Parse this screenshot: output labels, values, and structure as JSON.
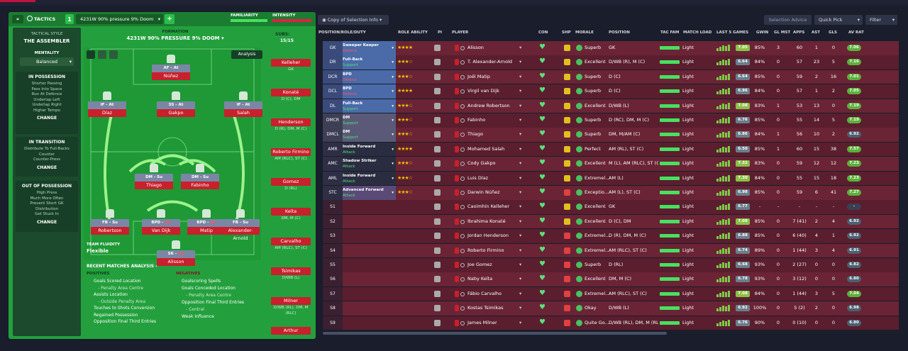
{
  "header": {
    "tactics_label": "TACTICS",
    "slot": "1",
    "tactic_name": "4231W 90% pressure 9% Doom",
    "familiarity": "FAMILIARITY",
    "intensity": "INTENSITY"
  },
  "sidebar": {
    "style_label": "TACTICAL STYLE",
    "style_value": "THE ASSEMBLER",
    "mentality_label": "MENTALITY",
    "mentality_value": "Balanced",
    "in_possession": {
      "title": "IN POSSESSION",
      "lines": [
        "Shorter Passing",
        "Pass Into Space",
        "Run At Defence",
        "Underlap Left",
        "Underlap Right",
        "Higher Tempo"
      ],
      "change": "CHANGE"
    },
    "in_transition": {
      "title": "IN TRANSITION",
      "lines": [
        "Distribute To Full-Backs",
        "Counter",
        "Counter-Press"
      ],
      "change": "CHANGE"
    },
    "out_of_possession": {
      "title": "OUT OF POSSESSION",
      "lines": [
        "High Press",
        "Much More Often",
        "Prevent Short GK",
        "Distribution",
        "Get Stuck In"
      ],
      "change": "CHANGE"
    }
  },
  "formation": {
    "label": "FORMATION",
    "value": "4231W 90% PRESSURE 9% DOOM",
    "subs_label": "SUBS:",
    "subs_value": "15/15",
    "analysis": "Analysis",
    "fluidity_label": "TEAM FLUIDITY",
    "fluidity_value": "Flexible"
  },
  "pitch_players": [
    {
      "role": "AF",
      "duty": "At",
      "name": "Núñez"
    },
    {
      "role": "IF",
      "duty": "At",
      "name": "Díaz"
    },
    {
      "role": "SS",
      "duty": "At",
      "name": "Gakpo"
    },
    {
      "role": "IF",
      "duty": "At",
      "name": "Salah"
    },
    {
      "role": "DM",
      "duty": "Su",
      "name": "Thiago"
    },
    {
      "role": "DM",
      "duty": "Su",
      "name": "Fabinho"
    },
    {
      "role": "FB",
      "duty": "Su",
      "name": "Robertson"
    },
    {
      "role": "BPD",
      "duty": "De",
      "name": "Van Dijk"
    },
    {
      "role": "BPD",
      "duty": "De",
      "name": "Matip"
    },
    {
      "role": "FB",
      "duty": "Su",
      "name": "Alexander-Arnold"
    },
    {
      "role": "SK",
      "duty": "De",
      "name": "Alisson"
    }
  ],
  "subs": [
    {
      "name": "Kelleher",
      "pos": "GK"
    },
    {
      "name": "Konaté",
      "pos": "D (C), DM"
    },
    {
      "name": "Henderson",
      "pos": "D (R), DM, M (C)"
    },
    {
      "name": "Roberto Firmino",
      "pos": "AM (RLC), ST (C)"
    },
    {
      "name": "Gomez",
      "pos": "D (RL)"
    },
    {
      "name": "Keïta",
      "pos": "DM, M (C)"
    },
    {
      "name": "Carvalho",
      "pos": "AM (RLC), ST (C)"
    },
    {
      "name": "Tsimikas",
      "pos": "D/WB (L)"
    },
    {
      "name": "Milner",
      "pos": "D/WB (RL), DM, M (RLC)"
    },
    {
      "name": "Arthur",
      "pos": ""
    }
  ],
  "analysis": {
    "title": "RECENT MATCHES ANALYSIS",
    "positives_label": "POSITIVES",
    "positives": [
      "Goals Scored Location",
      "- Penalty Area Centre",
      "Assists Location",
      "- Outside Penalty Area",
      "Touches to Shots Conversion",
      "Regained Possession",
      "Opposition Final Third Entries"
    ],
    "negatives_label": "NEGATIVES",
    "negatives": [
      "Goalscoring Spells",
      "Goals Conceded Location",
      "- Penalty Area Centre",
      "Opposition Final Third Entries",
      "- Central",
      "Weak Influence"
    ]
  },
  "toolbar": {
    "view": "Copy of Selection Info",
    "advice": "Selection Advice",
    "quick_pick": "Quick Pick",
    "filter": "Filter"
  },
  "columns": [
    "POSITION/ROLE/DUTY",
    "ROLE ABILITY",
    "PI",
    "PLAYER",
    "CON",
    "SHP",
    "MORALE",
    "POSITION",
    "TAC FAM",
    "MATCH LOAD",
    "LAST 5 GAMES",
    "GWIN",
    "GL MST",
    "APPS",
    "AST",
    "GLS",
    "AV RAT"
  ],
  "rows": [
    {
      "pos": "GK",
      "role": "Sweeper Keeper",
      "duty": "Defend",
      "stars": "★★★★",
      "name": "Alisson",
      "morale": "Superb",
      "position": "GK",
      "load": "Light",
      "form": "7.05",
      "gwin": "85%",
      "glmst": "3",
      "apps": "60",
      "ast": "1",
      "gls": "0",
      "avrat": "7.06",
      "sel": 1,
      "fc": "#8ac046",
      "ac": "#5cb03a"
    },
    {
      "pos": "DR",
      "role": "Full-Back",
      "duty": "Support",
      "stars": "★★★☆",
      "name": "T. Alexander-Arnold",
      "morale": "Excellent",
      "position": "D/WB (R), M (C)",
      "load": "Light",
      "form": "6.64",
      "gwin": "84%",
      "glmst": "0",
      "apps": "57",
      "ast": "23",
      "gls": "5",
      "avrat": "7.16",
      "sel": 1,
      "fc": "#6a7d8a",
      "ac": "#5cb03a"
    },
    {
      "pos": "DCR",
      "role": "BPD",
      "duty": "Defend",
      "stars": "★★★☆",
      "name": "Joël Matip",
      "morale": "Superb",
      "position": "D (C)",
      "load": "Light",
      "form": "6.64",
      "gwin": "85%",
      "glmst": "0",
      "apps": "59",
      "ast": "2",
      "gls": "16",
      "avrat": "7.01",
      "sel": 1,
      "fc": "#6a7d8a",
      "ac": "#5cb03a"
    },
    {
      "pos": "DCL",
      "role": "BPD",
      "duty": "Defend",
      "stars": "★★★★",
      "name": "Virgil van Dijk",
      "morale": "Superb",
      "position": "D (C)",
      "load": "Light",
      "form": "6.96",
      "gwin": "84%",
      "glmst": "0",
      "apps": "57",
      "ast": "1",
      "gls": "2",
      "avrat": "7.05",
      "sel": 1,
      "fc": "#6a7d8a",
      "ac": "#5cb03a"
    },
    {
      "pos": "DL",
      "role": "Full-Back",
      "duty": "Support",
      "stars": "★★★☆",
      "name": "Andrew Robertson",
      "morale": "Excellent",
      "position": "D/WB (L)",
      "load": "Light",
      "form": "7.08",
      "gwin": "83%",
      "glmst": "1",
      "apps": "53",
      "ast": "13",
      "gls": "0",
      "avrat": "7.19",
      "sel": 1,
      "fc": "#8ac046",
      "ac": "#5cb03a"
    },
    {
      "pos": "DMCR",
      "role": "DM",
      "duty": "Support",
      "stars": "★★★☆",
      "name": "Fabinho",
      "morale": "Superb",
      "position": "D (RC), DM, M (C)",
      "load": "Light",
      "form": "6.76",
      "gwin": "85%",
      "glmst": "0",
      "apps": "55",
      "ast": "14",
      "gls": "5",
      "avrat": "7.19",
      "sel": 1,
      "fc": "#6a7d8a",
      "ac": "#5cb03a"
    },
    {
      "pos": "DMCL",
      "role": "DM",
      "duty": "Support",
      "stars": "★★★☆",
      "name": "Thiago",
      "morale": "Superb",
      "position": "DM, M/AM (C)",
      "load": "Light",
      "form": "6.86",
      "gwin": "84%",
      "glmst": "1",
      "apps": "56",
      "ast": "10",
      "gls": "2",
      "avrat": "6.92",
      "sel": 1,
      "fc": "#6a7d8a",
      "ac": "#4a6070"
    },
    {
      "pos": "AMR",
      "role": "Inside Forward",
      "duty": "Attack",
      "stars": "★★★★",
      "name": "Mohamed Salah",
      "morale": "Perfect",
      "position": "AM (RL), ST (C)",
      "load": "Light",
      "form": "6.50",
      "gwin": "85%",
      "glmst": "1",
      "apps": "60",
      "ast": "15",
      "gls": "38",
      "avrat": "7.57",
      "sel": 1,
      "fc": "#6a7d8a",
      "ac": "#5cb03a"
    },
    {
      "pos": "AMC",
      "role": "Shadow Striker",
      "duty": "Attack",
      "stars": "★★★☆",
      "name": "Cody Gakpo",
      "morale": "Excellent",
      "position": "M (L), AM (RLC), ST (C)",
      "load": "Light",
      "form": "7.32",
      "gwin": "83%",
      "glmst": "0",
      "apps": "59",
      "ast": "12",
      "gls": "12",
      "avrat": "7.23",
      "sel": 1,
      "fc": "#8ac046",
      "ac": "#5cb03a"
    },
    {
      "pos": "AML",
      "role": "Inside Forward",
      "duty": "Attack",
      "stars": "★★★☆",
      "name": "Luis Díaz",
      "morale": "Extremel...",
      "position": "AM (L)",
      "load": "Light",
      "form": "7.30",
      "gwin": "84%",
      "glmst": "0",
      "apps": "55",
      "ast": "15",
      "gls": "18",
      "avrat": "7.23",
      "sel": 1,
      "fc": "#8ac046",
      "ac": "#5cb03a"
    },
    {
      "pos": "STC",
      "role": "Advanced Forward",
      "duty": "Attack",
      "stars": "★★★☆",
      "name": "Darwin Núñez",
      "morale": "Exceptio...",
      "position": "AM (L), ST (C)",
      "load": "Light",
      "form": "6.98",
      "gwin": "85%",
      "glmst": "0",
      "apps": "59",
      "ast": "6",
      "gls": "41",
      "avrat": "7.27",
      "sel": 1,
      "fc": "#6a7d8a",
      "ac": "#5cb03a"
    },
    {
      "pos": "S1",
      "role": "",
      "duty": "",
      "stars": "",
      "name": "Caoimhín Kelleher",
      "morale": "Excellent",
      "position": "GK",
      "load": "Light",
      "form": "6.77",
      "gwin": "-",
      "glmst": "-",
      "apps": "-",
      "ast": "-",
      "gls": "-",
      "avrat": "-",
      "sel": 0,
      "fc": "#6a7d8a",
      "ac": "#3a3f52"
    },
    {
      "pos": "S2",
      "role": "",
      "duty": "",
      "stars": "",
      "name": "Ibrahima Konaté",
      "morale": "Excellent",
      "position": "D (C), DM",
      "load": "Light",
      "form": "7.09",
      "gwin": "85%",
      "glmst": "0",
      "apps": "7 (41)",
      "ast": "2",
      "gls": "4",
      "avrat": "6.92",
      "sel": 0,
      "fc": "#8ac046",
      "ac": "#4a6070"
    },
    {
      "pos": "S3",
      "role": "",
      "duty": "",
      "stars": "",
      "name": "Jordan Henderson",
      "morale": "Extremel...",
      "position": "D (R), DM, M (C)",
      "load": "Light",
      "form": "6.88",
      "gwin": "85%",
      "glmst": "0",
      "apps": "6 (40)",
      "ast": "4",
      "gls": "1",
      "avrat": "6.92",
      "sel": 0,
      "fc": "#6a7d8a",
      "ac": "#4a6070"
    },
    {
      "pos": "S4",
      "role": "",
      "duty": "",
      "stars": "",
      "name": "Roberto Firmino",
      "morale": "Extremel...",
      "position": "AM (RLC), ST (C)",
      "load": "Light",
      "form": "6.74",
      "gwin": "89%",
      "glmst": "0",
      "apps": "1 (44)",
      "ast": "3",
      "gls": "4",
      "avrat": "6.91",
      "sel": 0,
      "fc": "#6a7d8a",
      "ac": "#4a6070"
    },
    {
      "pos": "S5",
      "role": "",
      "duty": "",
      "stars": "",
      "name": "Joe Gomez",
      "morale": "Superb",
      "position": "D (RL)",
      "load": "Light",
      "form": "6.68",
      "gwin": "93%",
      "glmst": "0",
      "apps": "2 (27)",
      "ast": "0",
      "gls": "0",
      "avrat": "6.82",
      "sel": 0,
      "fc": "#6a7d8a",
      "ac": "#4a6070"
    },
    {
      "pos": "S6",
      "role": "",
      "duty": "",
      "stars": "",
      "name": "Naby Keïta",
      "morale": "Excellent",
      "position": "DM, M (C)",
      "load": "Light",
      "form": "6.78",
      "gwin": "93%",
      "glmst": "0",
      "apps": "3 (12)",
      "ast": "0",
      "gls": "0",
      "avrat": "6.80",
      "sel": 0,
      "fc": "#6a7d8a",
      "ac": "#4a6070"
    },
    {
      "pos": "S7",
      "role": "",
      "duty": "",
      "stars": "",
      "name": "Fábio Carvalho",
      "morale": "Extremel...",
      "position": "AM (RLC), ST (C)",
      "load": "Light",
      "form": "7.08",
      "gwin": "84%",
      "glmst": "0",
      "apps": "1 (44)",
      "ast": "3",
      "gls": "5",
      "avrat": "7.04",
      "sel": 0,
      "fc": "#8ac046",
      "ac": "#5cb03a"
    },
    {
      "pos": "S8",
      "role": "",
      "duty": "",
      "stars": "",
      "name": "Kostas Tsimikas",
      "morale": "Okay",
      "position": "D/WB (L)",
      "load": "Light",
      "form": "6.92",
      "gwin": "100%",
      "glmst": "0",
      "apps": "5 (2)",
      "ast": "2",
      "gls": "0",
      "avrat": "6.98",
      "sel": 0,
      "fc": "#6a7d8a",
      "ac": "#4a6070"
    },
    {
      "pos": "S9",
      "role": "",
      "duty": "",
      "stars": "",
      "name": "James Milner",
      "morale": "Quite Go...",
      "position": "D/WB (RL), DM, M (RLC)",
      "load": "Light",
      "form": "6.76",
      "gwin": "90%",
      "glmst": "0",
      "apps": "0 (10)",
      "ast": "0",
      "gls": "0",
      "avrat": "6.80",
      "sel": 0,
      "fc": "#6a7d8a",
      "ac": "#4a6070"
    }
  ]
}
